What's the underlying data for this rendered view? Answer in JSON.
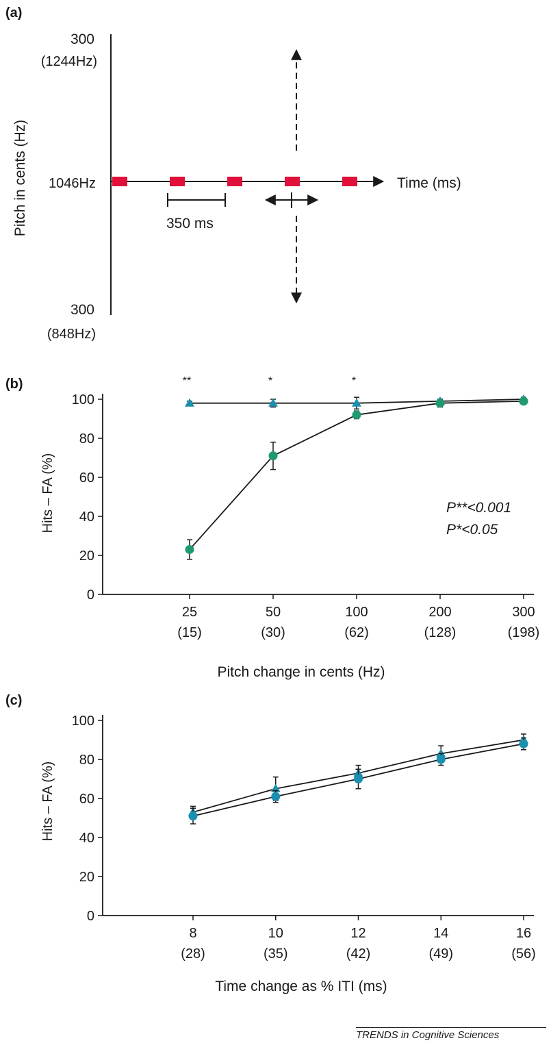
{
  "panels": {
    "a": "(a)",
    "b": "(b)",
    "c": "(c)"
  },
  "colors": {
    "tone": "#e0103a",
    "green": "#1e9a6e",
    "blue": "#1a8fb0",
    "line": "#1a1a1a"
  },
  "panel_a": {
    "y_top_label": "300",
    "y_top_hz": "(1244Hz)",
    "y_mid_label": "1046Hz",
    "y_bottom_label": "300",
    "y_bottom_hz": "(848Hz)",
    "ylabel": "Pitch in cents (Hz)",
    "xlabel": "Time (ms)",
    "interval_label": "350 ms",
    "tone_count": 5
  },
  "chart_data": [
    {
      "type": "line",
      "panel": "b",
      "categories": [
        "25",
        "50",
        "100",
        "200",
        "300"
      ],
      "category_sublabels": [
        "(15)",
        "(30)",
        "(62)",
        "(128)",
        "(198)"
      ],
      "xlabel": "Pitch change in cents (Hz)",
      "ylabel": "Hits – FA (%)",
      "ylim": [
        0,
        100
      ],
      "yticks": [
        0,
        20,
        40,
        60,
        80,
        100
      ],
      "grid": false,
      "series": [
        {
          "color": "#1a8fb0",
          "marker": "triangle",
          "values": [
            98,
            98,
            98,
            99,
            100
          ],
          "errors": [
            1,
            2,
            3,
            1,
            1
          ]
        },
        {
          "color": "#1e9a6e",
          "marker": "circle",
          "values": [
            23,
            71,
            92,
            98,
            99
          ],
          "errors": [
            5,
            7,
            2,
            2,
            1
          ]
        }
      ],
      "significance": [
        "**",
        "*",
        "*",
        "",
        ""
      ],
      "annotations": [
        "P**<0.001",
        "P*<0.05"
      ]
    },
    {
      "type": "line",
      "panel": "c",
      "categories": [
        "8",
        "10",
        "12",
        "14",
        "16"
      ],
      "category_sublabels": [
        "(28)",
        "(35)",
        "(42)",
        "(49)",
        "(56)"
      ],
      "xlabel": "Time change as % ITI (ms)",
      "ylabel": "Hits – FA (%)",
      "ylim": [
        0,
        100
      ],
      "yticks": [
        0,
        20,
        40,
        60,
        80,
        100
      ],
      "grid": false,
      "series": [
        {
          "color": "#1a8fb0",
          "marker": "triangle",
          "values": [
            53,
            65,
            73,
            83,
            90
          ],
          "errors": [
            3,
            6,
            4,
            4,
            3
          ]
        },
        {
          "color": "#1a8fb0",
          "marker": "circle",
          "values": [
            51,
            61,
            70,
            80,
            88
          ],
          "errors": [
            4,
            3,
            5,
            3,
            3
          ]
        }
      ]
    }
  ],
  "credit": "TRENDS in Cognitive Sciences"
}
